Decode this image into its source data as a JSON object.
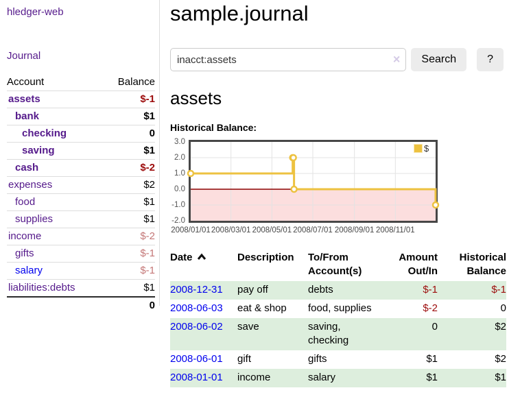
{
  "colors": {
    "link_purple": "#551a8b",
    "link_blue": "#0000ee",
    "negative_strong": "#9c0b0b",
    "negative_muted": "#c47777",
    "row_stripe_green": "#ddeedd",
    "button_bg": "#ececec",
    "chart_line_gold": "#edc240",
    "chart_negative_region": "#fcdede",
    "chart_zero_line": "#8b0000",
    "chart_border": "#474747"
  },
  "sidebar": {
    "app_title": "hledger-web",
    "journal_label": "Journal",
    "accounts_header": "Account",
    "balance_header": "Balance",
    "accounts": [
      {
        "label": "assets",
        "indent": 0,
        "bold": true,
        "link_color": "purple",
        "balance": "$-1",
        "balance_style": "neg"
      },
      {
        "label": "bank",
        "indent": 1,
        "bold": true,
        "link_color": "purple",
        "balance": "$1",
        "balance_style": "pos"
      },
      {
        "label": "checking",
        "indent": 2,
        "bold": true,
        "link_color": "purple",
        "balance": "0",
        "balance_style": "pos"
      },
      {
        "label": "saving",
        "indent": 2,
        "bold": true,
        "link_color": "purple",
        "balance": "$1",
        "balance_style": "pos"
      },
      {
        "label": "cash",
        "indent": 1,
        "bold": true,
        "link_color": "purple",
        "balance": "$-2",
        "balance_style": "neg"
      },
      {
        "label": "expenses",
        "indent": 0,
        "bold": false,
        "link_color": "purple",
        "balance": "$2",
        "balance_style": "pos"
      },
      {
        "label": "food",
        "indent": 1,
        "bold": false,
        "link_color": "purple",
        "balance": "$1",
        "balance_style": "pos"
      },
      {
        "label": "supplies",
        "indent": 1,
        "bold": false,
        "link_color": "purple",
        "balance": "$1",
        "balance_style": "pos"
      },
      {
        "label": "income",
        "indent": 0,
        "bold": false,
        "link_color": "purple",
        "balance": "$-2",
        "balance_style": "neg-muted"
      },
      {
        "label": "gifts",
        "indent": 1,
        "bold": false,
        "link_color": "purple",
        "balance": "$-1",
        "balance_style": "neg-muted"
      },
      {
        "label": "salary",
        "indent": 1,
        "bold": false,
        "link_color": "blue",
        "balance": "$-1",
        "balance_style": "neg-muted"
      },
      {
        "label": "liabilities:debts",
        "indent": 0,
        "bold": false,
        "link_color": "purple",
        "balance": "$1",
        "balance_style": "pos"
      }
    ],
    "total": "0"
  },
  "main": {
    "title": "sample.journal",
    "search": {
      "value": "inacct:assets",
      "clear_icon": "×",
      "button_label": "Search",
      "help_label": "?"
    },
    "account_heading": "assets"
  },
  "chart_data": {
    "type": "line",
    "title": "Historical Balance:",
    "step": true,
    "legend": "$",
    "legend_position": "top-right",
    "grid": true,
    "ylim": [
      -2,
      3
    ],
    "y_ticks": [
      "3.0",
      "2.0",
      "1.0",
      "0.0",
      "-1.0",
      "-2.0"
    ],
    "y_gridlines": [
      2,
      1,
      -1
    ],
    "x_domain_days": [
      0,
      365
    ],
    "x_ticks": [
      {
        "label": "2008/01/01",
        "day": 0
      },
      {
        "label": "2008/03/01",
        "day": 60
      },
      {
        "label": "2008/05/01",
        "day": 121
      },
      {
        "label": "2008/07/01",
        "day": 182
      },
      {
        "label": "2008/09/01",
        "day": 244
      },
      {
        "label": "2008/11/01",
        "day": 305
      }
    ],
    "series": [
      {
        "name": "$",
        "color": "#edc240",
        "points": [
          {
            "date": "2008-01-01",
            "day": 0,
            "value": 1
          },
          {
            "date": "2008-06-01",
            "day": 152,
            "value": 2
          },
          {
            "date": "2008-06-02",
            "day": 153,
            "value": 2
          },
          {
            "date": "2008-06-03",
            "day": 154,
            "value": 0
          },
          {
            "date": "2008-12-31",
            "day": 365,
            "value": -1
          }
        ]
      }
    ]
  },
  "register": {
    "headers": {
      "date": "Date",
      "description": "Description",
      "accounts": "To/From Account(s)",
      "amount": "Amount Out/In",
      "balance": "Historical Balance"
    },
    "rows": [
      {
        "date": "2008-12-31",
        "description": "pay off",
        "accounts": "debts",
        "amount": "$-1",
        "amount_negative": true,
        "balance": "$-1",
        "balance_negative": true
      },
      {
        "date": "2008-06-03",
        "description": "eat & shop",
        "accounts": "food, supplies",
        "amount": "$-2",
        "amount_negative": true,
        "balance": "0",
        "balance_negative": false
      },
      {
        "date": "2008-06-02",
        "description": "save",
        "accounts": "saving, checking",
        "amount": "0",
        "amount_negative": false,
        "balance": "$2",
        "balance_negative": false
      },
      {
        "date": "2008-06-01",
        "description": "gift",
        "accounts": "gifts",
        "amount": "$1",
        "amount_negative": false,
        "balance": "$2",
        "balance_negative": false
      },
      {
        "date": "2008-01-01",
        "description": "income",
        "accounts": "salary",
        "amount": "$1",
        "amount_negative": false,
        "balance": "$1",
        "balance_negative": false
      }
    ]
  }
}
